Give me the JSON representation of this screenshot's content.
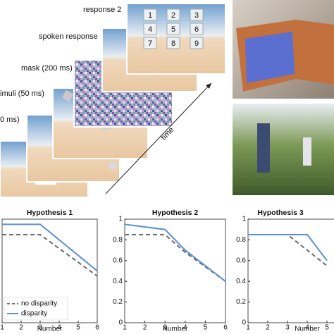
{
  "procedure": {
    "steps": [
      "response 2",
      "spoken response",
      "mask (200 ms)",
      "imuli (50 ms)",
      "0 ms)"
    ],
    "keypad": [
      "1",
      "2",
      "3",
      "4",
      "5",
      "6",
      "7",
      "8",
      "9"
    ],
    "axis_label": "time"
  },
  "chart_data": [
    {
      "type": "line",
      "title": "Hypothesis 1",
      "x_label": "Number",
      "x": [
        1,
        3,
        6
      ],
      "series": [
        {
          "name": "no disparity",
          "color": "#6b6b6b",
          "dashed": true,
          "values": [
            0.85,
            0.85,
            0.45
          ]
        },
        {
          "name": "disparity",
          "color": "#5a8fd6",
          "values": [
            0.95,
            0.95,
            0.5
          ]
        }
      ],
      "xlim": [
        1,
        6
      ],
      "xticks": [
        1,
        2,
        3,
        4,
        5,
        6
      ],
      "ylim": [
        0,
        1
      ],
      "legend": "lower left"
    },
    {
      "type": "line",
      "title": "Hypothesis 2",
      "x_label": "Number",
      "x": [
        1,
        3,
        4,
        6
      ],
      "series": [
        {
          "name": "no disparity",
          "color": "#6b6b6b",
          "dashed": true,
          "values": [
            0.85,
            0.85,
            0.68,
            0.4
          ]
        },
        {
          "name": "disparity",
          "color": "#5a8fd6",
          "values": [
            0.95,
            0.9,
            0.7,
            0.4
          ]
        }
      ],
      "xlim": [
        1,
        6
      ],
      "xticks": [
        1,
        2,
        3,
        4,
        5,
        6
      ],
      "ylim": [
        0,
        1
      ],
      "yticks": [
        0,
        0.2,
        0.4,
        0.6,
        0.8,
        1
      ]
    },
    {
      "type": "line",
      "title": "Hypothesis 3",
      "x_label": "Number",
      "x": [
        1,
        3,
        4,
        5
      ],
      "series": [
        {
          "name": "no disparity",
          "color": "#6b6b6b",
          "dashed": true,
          "values": [
            0.85,
            0.85,
            0.7,
            0.55
          ]
        },
        {
          "name": "disparity",
          "color": "#5a8fd6",
          "values": [
            0.85,
            0.85,
            0.85,
            0.6
          ]
        }
      ],
      "xlim": [
        1,
        6
      ],
      "xticks": [
        1,
        2,
        3,
        4,
        5
      ],
      "ylim": [
        0,
        1
      ],
      "yticks": [
        0,
        0.2,
        0.4,
        0.6,
        0.8,
        1
      ]
    }
  ]
}
